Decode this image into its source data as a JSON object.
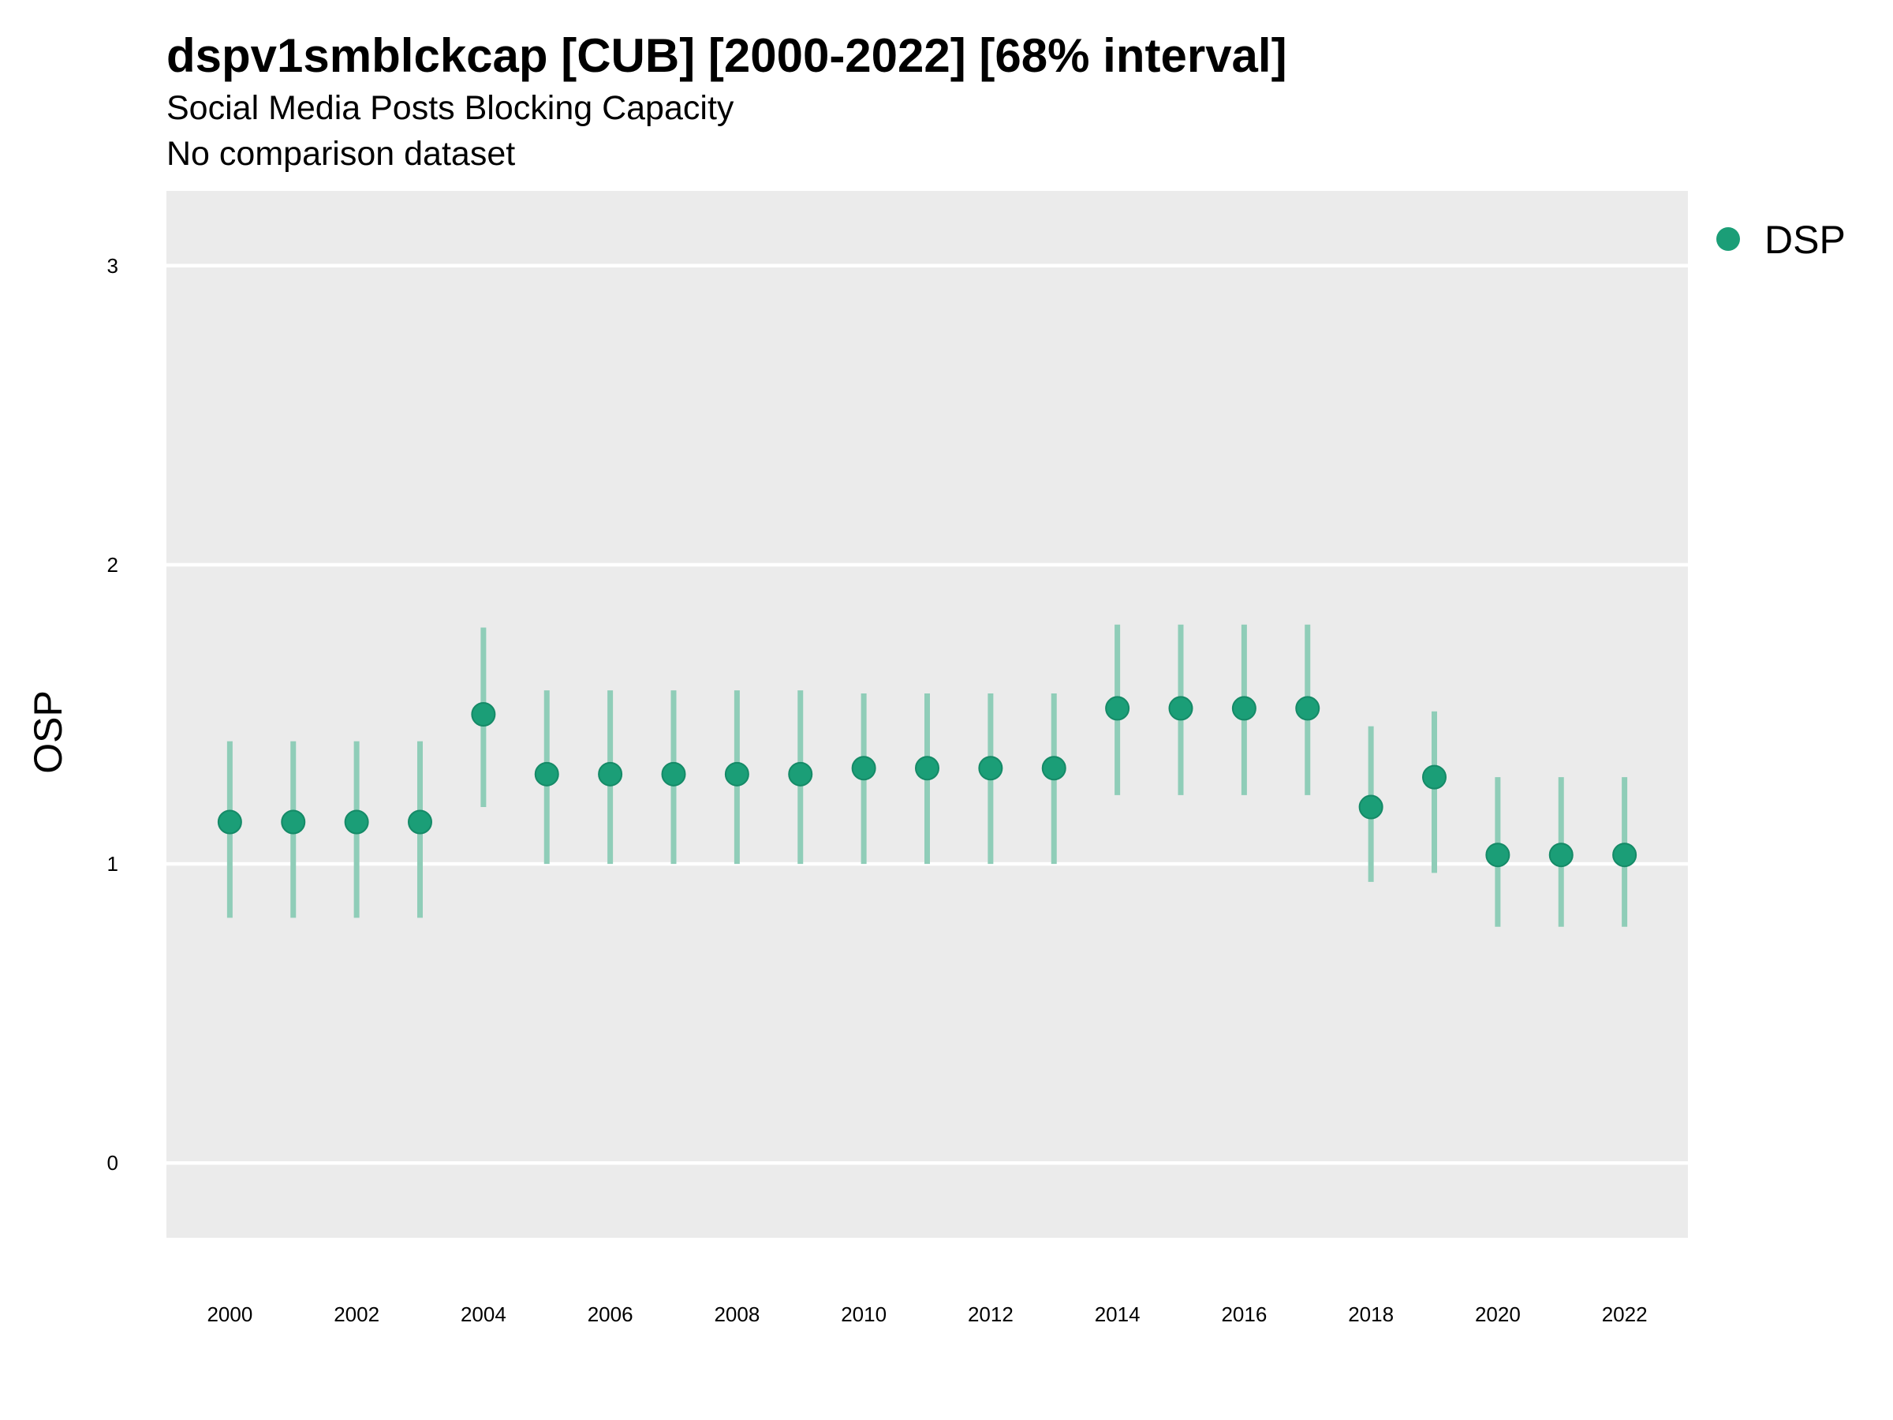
{
  "chart_data": {
    "type": "scatter",
    "title": "dspv1smblckcap [CUB] [2000-2022] [68% interval]",
    "subtitle": "Social Media Posts Blocking Capacity",
    "caption": "No comparison dataset",
    "xlabel": "",
    "ylabel": "OSP",
    "x_ticks": [
      "2000",
      "2002",
      "2004",
      "2006",
      "2008",
      "2010",
      "2012",
      "2014",
      "2016",
      "2018",
      "2020",
      "2022"
    ],
    "y_ticks": [
      "0",
      "1",
      "2",
      "3"
    ],
    "xlim": [
      1999,
      2023
    ],
    "ylim": [
      -0.25,
      3.25
    ],
    "grid": true,
    "legend_position": "right",
    "colors": {
      "point": "#1b9e77",
      "interval": "#8fcdb8",
      "panel": "#ebebeb",
      "grid": "#ffffff"
    },
    "series": [
      {
        "name": "DSP",
        "x": [
          2000,
          2001,
          2002,
          2003,
          2004,
          2005,
          2006,
          2007,
          2008,
          2009,
          2010,
          2011,
          2012,
          2013,
          2014,
          2015,
          2016,
          2017,
          2018,
          2019,
          2020,
          2021,
          2022
        ],
        "y": [
          1.14,
          1.14,
          1.14,
          1.14,
          1.5,
          1.3,
          1.3,
          1.3,
          1.3,
          1.3,
          1.32,
          1.32,
          1.32,
          1.32,
          1.52,
          1.52,
          1.52,
          1.52,
          1.19,
          1.29,
          1.03,
          1.03,
          1.03
        ],
        "lower": [
          0.82,
          0.82,
          0.82,
          0.82,
          1.19,
          1.0,
          1.0,
          1.0,
          1.0,
          1.0,
          1.0,
          1.0,
          1.0,
          1.0,
          1.23,
          1.23,
          1.23,
          1.23,
          0.94,
          0.97,
          0.79,
          0.79,
          0.79
        ],
        "upper": [
          1.41,
          1.41,
          1.41,
          1.41,
          1.79,
          1.58,
          1.58,
          1.58,
          1.58,
          1.58,
          1.57,
          1.57,
          1.57,
          1.57,
          1.8,
          1.8,
          1.8,
          1.8,
          1.46,
          1.51,
          1.29,
          1.29,
          1.29
        ]
      }
    ]
  }
}
